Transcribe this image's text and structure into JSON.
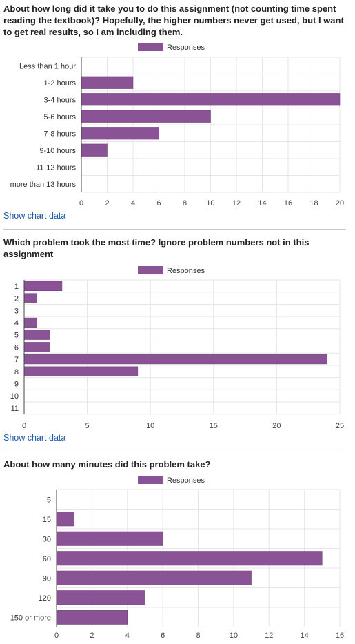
{
  "questions": [
    {
      "title": "About how long did it take you to do this assignment (not counting time spent reading the textbook)? Hopefully, the higher numbers never get used, but I want to get real results, so I am including them.",
      "show_link": "Show chart data",
      "chart_data": {
        "type": "bar",
        "orientation": "horizontal",
        "legend": "Responses",
        "legend_position": "top",
        "categories": [
          "Less than 1 hour",
          "1-2 hours",
          "3-4 hours",
          "5-6 hours",
          "7-8 hours",
          "9-10 hours",
          "11-12 hours",
          "more than 13 hours"
        ],
        "values": [
          0,
          4,
          20,
          10,
          6,
          2,
          0,
          0
        ],
        "xlim": [
          0,
          20
        ],
        "ticks": [
          0,
          2,
          4,
          6,
          8,
          10,
          12,
          14,
          16,
          18,
          20
        ],
        "grid": true
      }
    },
    {
      "title": "Which problem took the most time? Ignore problem numbers not in this assignment",
      "show_link": "Show chart data",
      "chart_data": {
        "type": "bar",
        "orientation": "horizontal",
        "legend": "Responses",
        "legend_position": "top",
        "categories": [
          "1",
          "2",
          "3",
          "4",
          "5",
          "6",
          "7",
          "8",
          "9",
          "10",
          "11"
        ],
        "values": [
          3,
          1,
          0,
          1,
          2,
          2,
          24,
          9,
          0,
          0,
          0
        ],
        "xlim": [
          0,
          25
        ],
        "ticks": [
          0,
          5,
          10,
          15,
          20,
          25
        ],
        "grid": true
      }
    },
    {
      "title": "About how many minutes did this problem take?",
      "chart_data": {
        "type": "bar",
        "orientation": "horizontal",
        "legend": "Responses",
        "legend_position": "top",
        "categories": [
          "5",
          "15",
          "30",
          "60",
          "90",
          "120",
          "150 or more"
        ],
        "values": [
          0,
          1,
          6,
          15,
          11,
          5,
          4
        ],
        "xlim": [
          0,
          16
        ],
        "ticks": [
          0,
          2,
          4,
          6,
          8,
          10,
          12,
          14,
          16
        ],
        "grid": true
      }
    }
  ],
  "colors": {
    "bar": "#8a5396",
    "bar_border": "#6e3c7a",
    "grid": "#e6e6e6",
    "axis": "#444444",
    "link": "#1a5ca8"
  }
}
